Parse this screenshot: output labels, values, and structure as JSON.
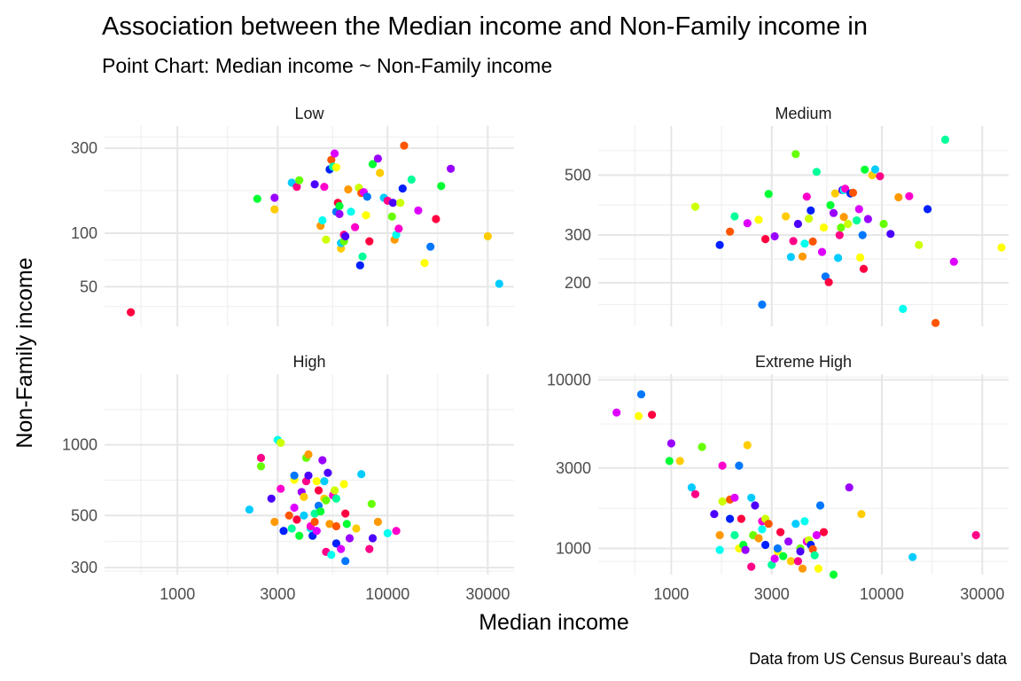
{
  "chart_data": {
    "type": "scatter",
    "title": "Association between the Median income and Non-Family income in",
    "subtitle": "Point Chart: Median income ~ Non-Family income",
    "xlabel": "Median income",
    "ylabel": "Non-Family income",
    "caption": "Data from US Census Bureau’s data",
    "x_scale": "log",
    "x_ticks": [
      1000,
      3000,
      10000,
      30000
    ],
    "x_tick_labels": [
      "1000",
      "3000",
      "10000",
      "30000"
    ],
    "xlim": [
      450,
      40000
    ],
    "grid": true,
    "legend": "none",
    "palette": [
      "#ff0040",
      "#ff5500",
      "#ff9900",
      "#ffcc00",
      "#ffff00",
      "#ccff00",
      "#66ff00",
      "#00ff33",
      "#00ff99",
      "#00ffee",
      "#00ccff",
      "#0077ff",
      "#0020ff",
      "#4b00ff",
      "#9900ff",
      "#dd00ff",
      "#ff00cc",
      "#ff0088"
    ],
    "panels": [
      {
        "label": "Low",
        "y_scale": "log",
        "ylim": [
          30,
          400
        ],
        "y_ticks": [
          50,
          100,
          300
        ],
        "y_tick_labels": [
          "50",
          "100",
          "300"
        ],
        "points": [
          [
            600,
            36
          ],
          [
            2400,
            156
          ],
          [
            2900,
            158
          ],
          [
            2900,
            136
          ],
          [
            3500,
            192
          ],
          [
            3700,
            182
          ],
          [
            3800,
            198
          ],
          [
            4500,
            188
          ],
          [
            4800,
            110
          ],
          [
            4900,
            118
          ],
          [
            5000,
            182
          ],
          [
            5100,
            92
          ],
          [
            5300,
            228
          ],
          [
            5400,
            258
          ],
          [
            5500,
            236
          ],
          [
            5600,
            280
          ],
          [
            5700,
            234
          ],
          [
            5700,
            132
          ],
          [
            5800,
            148
          ],
          [
            5900,
            142
          ],
          [
            5900,
            128
          ],
          [
            6000,
            82
          ],
          [
            6000,
            88
          ],
          [
            6200,
            98
          ],
          [
            6200,
            90
          ],
          [
            6300,
            96
          ],
          [
            6500,
            176
          ],
          [
            6700,
            132
          ],
          [
            7000,
            108
          ],
          [
            7300,
            180
          ],
          [
            7400,
            66
          ],
          [
            7500,
            168
          ],
          [
            7600,
            74
          ],
          [
            7700,
            170
          ],
          [
            7900,
            126
          ],
          [
            8000,
            160
          ],
          [
            8200,
            90
          ],
          [
            8500,
            244
          ],
          [
            9000,
            262
          ],
          [
            9200,
            218
          ],
          [
            9600,
            158
          ],
          [
            10000,
            152
          ],
          [
            10500,
            124
          ],
          [
            10600,
            148
          ],
          [
            10800,
            92
          ],
          [
            11000,
            98
          ],
          [
            11300,
            106
          ],
          [
            11500,
            148
          ],
          [
            11800,
            178
          ],
          [
            12000,
            310
          ],
          [
            13000,
            200
          ],
          [
            14000,
            134
          ],
          [
            15000,
            68
          ],
          [
            16000,
            84
          ],
          [
            17000,
            120
          ],
          [
            18000,
            184
          ],
          [
            20000,
            230
          ],
          [
            30000,
            96
          ],
          [
            34000,
            52
          ]
        ]
      },
      {
        "label": "Medium",
        "y_scale": "log",
        "ylim": [
          138,
          760
        ],
        "y_ticks": [
          200,
          300,
          500
        ],
        "y_tick_labels": [
          "200",
          "300",
          "500"
        ],
        "points": [
          [
            1300,
            382
          ],
          [
            1700,
            276
          ],
          [
            1900,
            309
          ],
          [
            2000,
            352
          ],
          [
            2300,
            332
          ],
          [
            2600,
            342
          ],
          [
            2700,
            166
          ],
          [
            2800,
            290
          ],
          [
            2900,
            426
          ],
          [
            3100,
            297
          ],
          [
            3500,
            352
          ],
          [
            3700,
            249
          ],
          [
            3800,
            285
          ],
          [
            3900,
            598
          ],
          [
            4000,
            330
          ],
          [
            4200,
            250
          ],
          [
            4300,
            279
          ],
          [
            4400,
            416
          ],
          [
            4500,
            345
          ],
          [
            4600,
            370
          ],
          [
            4700,
            284
          ],
          [
            4900,
            514
          ],
          [
            5200,
            260
          ],
          [
            5300,
            320
          ],
          [
            5400,
            211
          ],
          [
            5600,
            201
          ],
          [
            5700,
            387
          ],
          [
            5900,
            362
          ],
          [
            6000,
            428
          ],
          [
            6200,
            247
          ],
          [
            6300,
            300
          ],
          [
            6400,
            320
          ],
          [
            6500,
            440
          ],
          [
            6600,
            350
          ],
          [
            6600,
            440
          ],
          [
            6700,
            445
          ],
          [
            6900,
            330
          ],
          [
            7100,
            428
          ],
          [
            7300,
            430
          ],
          [
            7600,
            340
          ],
          [
            7800,
            374
          ],
          [
            7900,
            248
          ],
          [
            8100,
            300
          ],
          [
            8200,
            225
          ],
          [
            8300,
            524
          ],
          [
            8600,
            344
          ],
          [
            9000,
            500
          ],
          [
            9300,
            525
          ],
          [
            9800,
            495
          ],
          [
            10200,
            330
          ],
          [
            11000,
            303
          ],
          [
            12000,
            414
          ],
          [
            12600,
            160
          ],
          [
            13500,
            418
          ],
          [
            15000,
            276
          ],
          [
            16500,
            374
          ],
          [
            18000,
            142
          ],
          [
            20000,
            676
          ],
          [
            22000,
            239
          ],
          [
            37000,
            270
          ]
        ]
      },
      {
        "label": "High",
        "y_scale": "log",
        "ylim": [
          280,
          2000
        ],
        "y_ticks": [
          300,
          500,
          1000
        ],
        "y_tick_labels": [
          "300",
          "500",
          "1000"
        ],
        "points": [
          [
            2200,
            530
          ],
          [
            2500,
            880
          ],
          [
            2500,
            810
          ],
          [
            2800,
            590
          ],
          [
            2900,
            470
          ],
          [
            3000,
            1050
          ],
          [
            3100,
            650
          ],
          [
            3100,
            1020
          ],
          [
            3200,
            430
          ],
          [
            3400,
            500
          ],
          [
            3500,
            440
          ],
          [
            3600,
            540
          ],
          [
            3600,
            710
          ],
          [
            3600,
            740
          ],
          [
            3700,
            480
          ],
          [
            3800,
            410
          ],
          [
            3900,
            630
          ],
          [
            4000,
            600
          ],
          [
            4000,
            500
          ],
          [
            4100,
            700
          ],
          [
            4100,
            880
          ],
          [
            4200,
            740
          ],
          [
            4200,
            910
          ],
          [
            4300,
            440
          ],
          [
            4300,
            450
          ],
          [
            4400,
            410
          ],
          [
            4400,
            410
          ],
          [
            4500,
            470
          ],
          [
            4500,
            510
          ],
          [
            4600,
            430
          ],
          [
            4600,
            700
          ],
          [
            4700,
            550
          ],
          [
            4700,
            640
          ],
          [
            4800,
            520
          ],
          [
            4900,
            860
          ],
          [
            5000,
            590
          ],
          [
            5000,
            700
          ],
          [
            5100,
            350
          ],
          [
            5100,
            580
          ],
          [
            5200,
            760
          ],
          [
            5300,
            460
          ],
          [
            5400,
            340
          ],
          [
            5500,
            610
          ],
          [
            5600,
            640
          ],
          [
            5700,
            380
          ],
          [
            5700,
            450
          ],
          [
            5700,
            590
          ],
          [
            6000,
            360
          ],
          [
            6200,
            680
          ],
          [
            6300,
            320
          ],
          [
            6300,
            510
          ],
          [
            6400,
            460
          ],
          [
            6600,
            400
          ],
          [
            7100,
            440
          ],
          [
            7500,
            750
          ],
          [
            8200,
            360
          ],
          [
            8400,
            560
          ],
          [
            8500,
            400
          ],
          [
            9000,
            470
          ],
          [
            10000,
            420
          ],
          [
            11000,
            430
          ]
        ]
      },
      {
        "label": "Extreme High",
        "y_scale": "log",
        "ylim": [
          700,
          10800
        ],
        "y_ticks": [
          1000,
          3000,
          10000
        ],
        "y_tick_labels": [
          "1000",
          "3000",
          "10000"
        ],
        "points": [
          [
            550,
            6400
          ],
          [
            700,
            6100
          ],
          [
            720,
            8200
          ],
          [
            810,
            6200
          ],
          [
            980,
            3300
          ],
          [
            1000,
            4200
          ],
          [
            1100,
            3300
          ],
          [
            1250,
            2300
          ],
          [
            1300,
            2100
          ],
          [
            1400,
            4000
          ],
          [
            1600,
            1600
          ],
          [
            1700,
            1200
          ],
          [
            1700,
            980
          ],
          [
            1750,
            3100
          ],
          [
            1750,
            1900
          ],
          [
            1900,
            1500
          ],
          [
            1900,
            1950
          ],
          [
            2000,
            1200
          ],
          [
            2000,
            2000
          ],
          [
            2100,
            1000
          ],
          [
            2100,
            3100
          ],
          [
            2150,
            1500
          ],
          [
            2200,
            1050
          ],
          [
            2250,
            980
          ],
          [
            2300,
            4100
          ],
          [
            2400,
            2000
          ],
          [
            2400,
            780
          ],
          [
            2450,
            1200
          ],
          [
            2500,
            1800
          ],
          [
            2600,
            1150
          ],
          [
            2700,
            1300
          ],
          [
            2700,
            1450
          ],
          [
            2800,
            1500
          ],
          [
            2800,
            1050
          ],
          [
            2900,
            1400
          ],
          [
            3000,
            800
          ],
          [
            3100,
            870
          ],
          [
            3200,
            960
          ],
          [
            3200,
            1000
          ],
          [
            3300,
            1250
          ],
          [
            3400,
            900
          ],
          [
            3600,
            1100
          ],
          [
            3700,
            840
          ],
          [
            3900,
            1400
          ],
          [
            4000,
            840
          ],
          [
            4100,
            1000
          ],
          [
            4100,
            960
          ],
          [
            4200,
            760
          ],
          [
            4300,
            1450
          ],
          [
            4400,
            1100
          ],
          [
            4500,
            1120
          ],
          [
            4600,
            1050
          ],
          [
            4700,
            990
          ],
          [
            4800,
            910
          ],
          [
            4900,
            1200
          ],
          [
            5000,
            760
          ],
          [
            5100,
            1800
          ],
          [
            5300,
            1250
          ],
          [
            5900,
            700
          ],
          [
            7000,
            2300
          ],
          [
            8000,
            1600
          ],
          [
            14000,
            890
          ],
          [
            28000,
            1200
          ]
        ]
      }
    ]
  }
}
